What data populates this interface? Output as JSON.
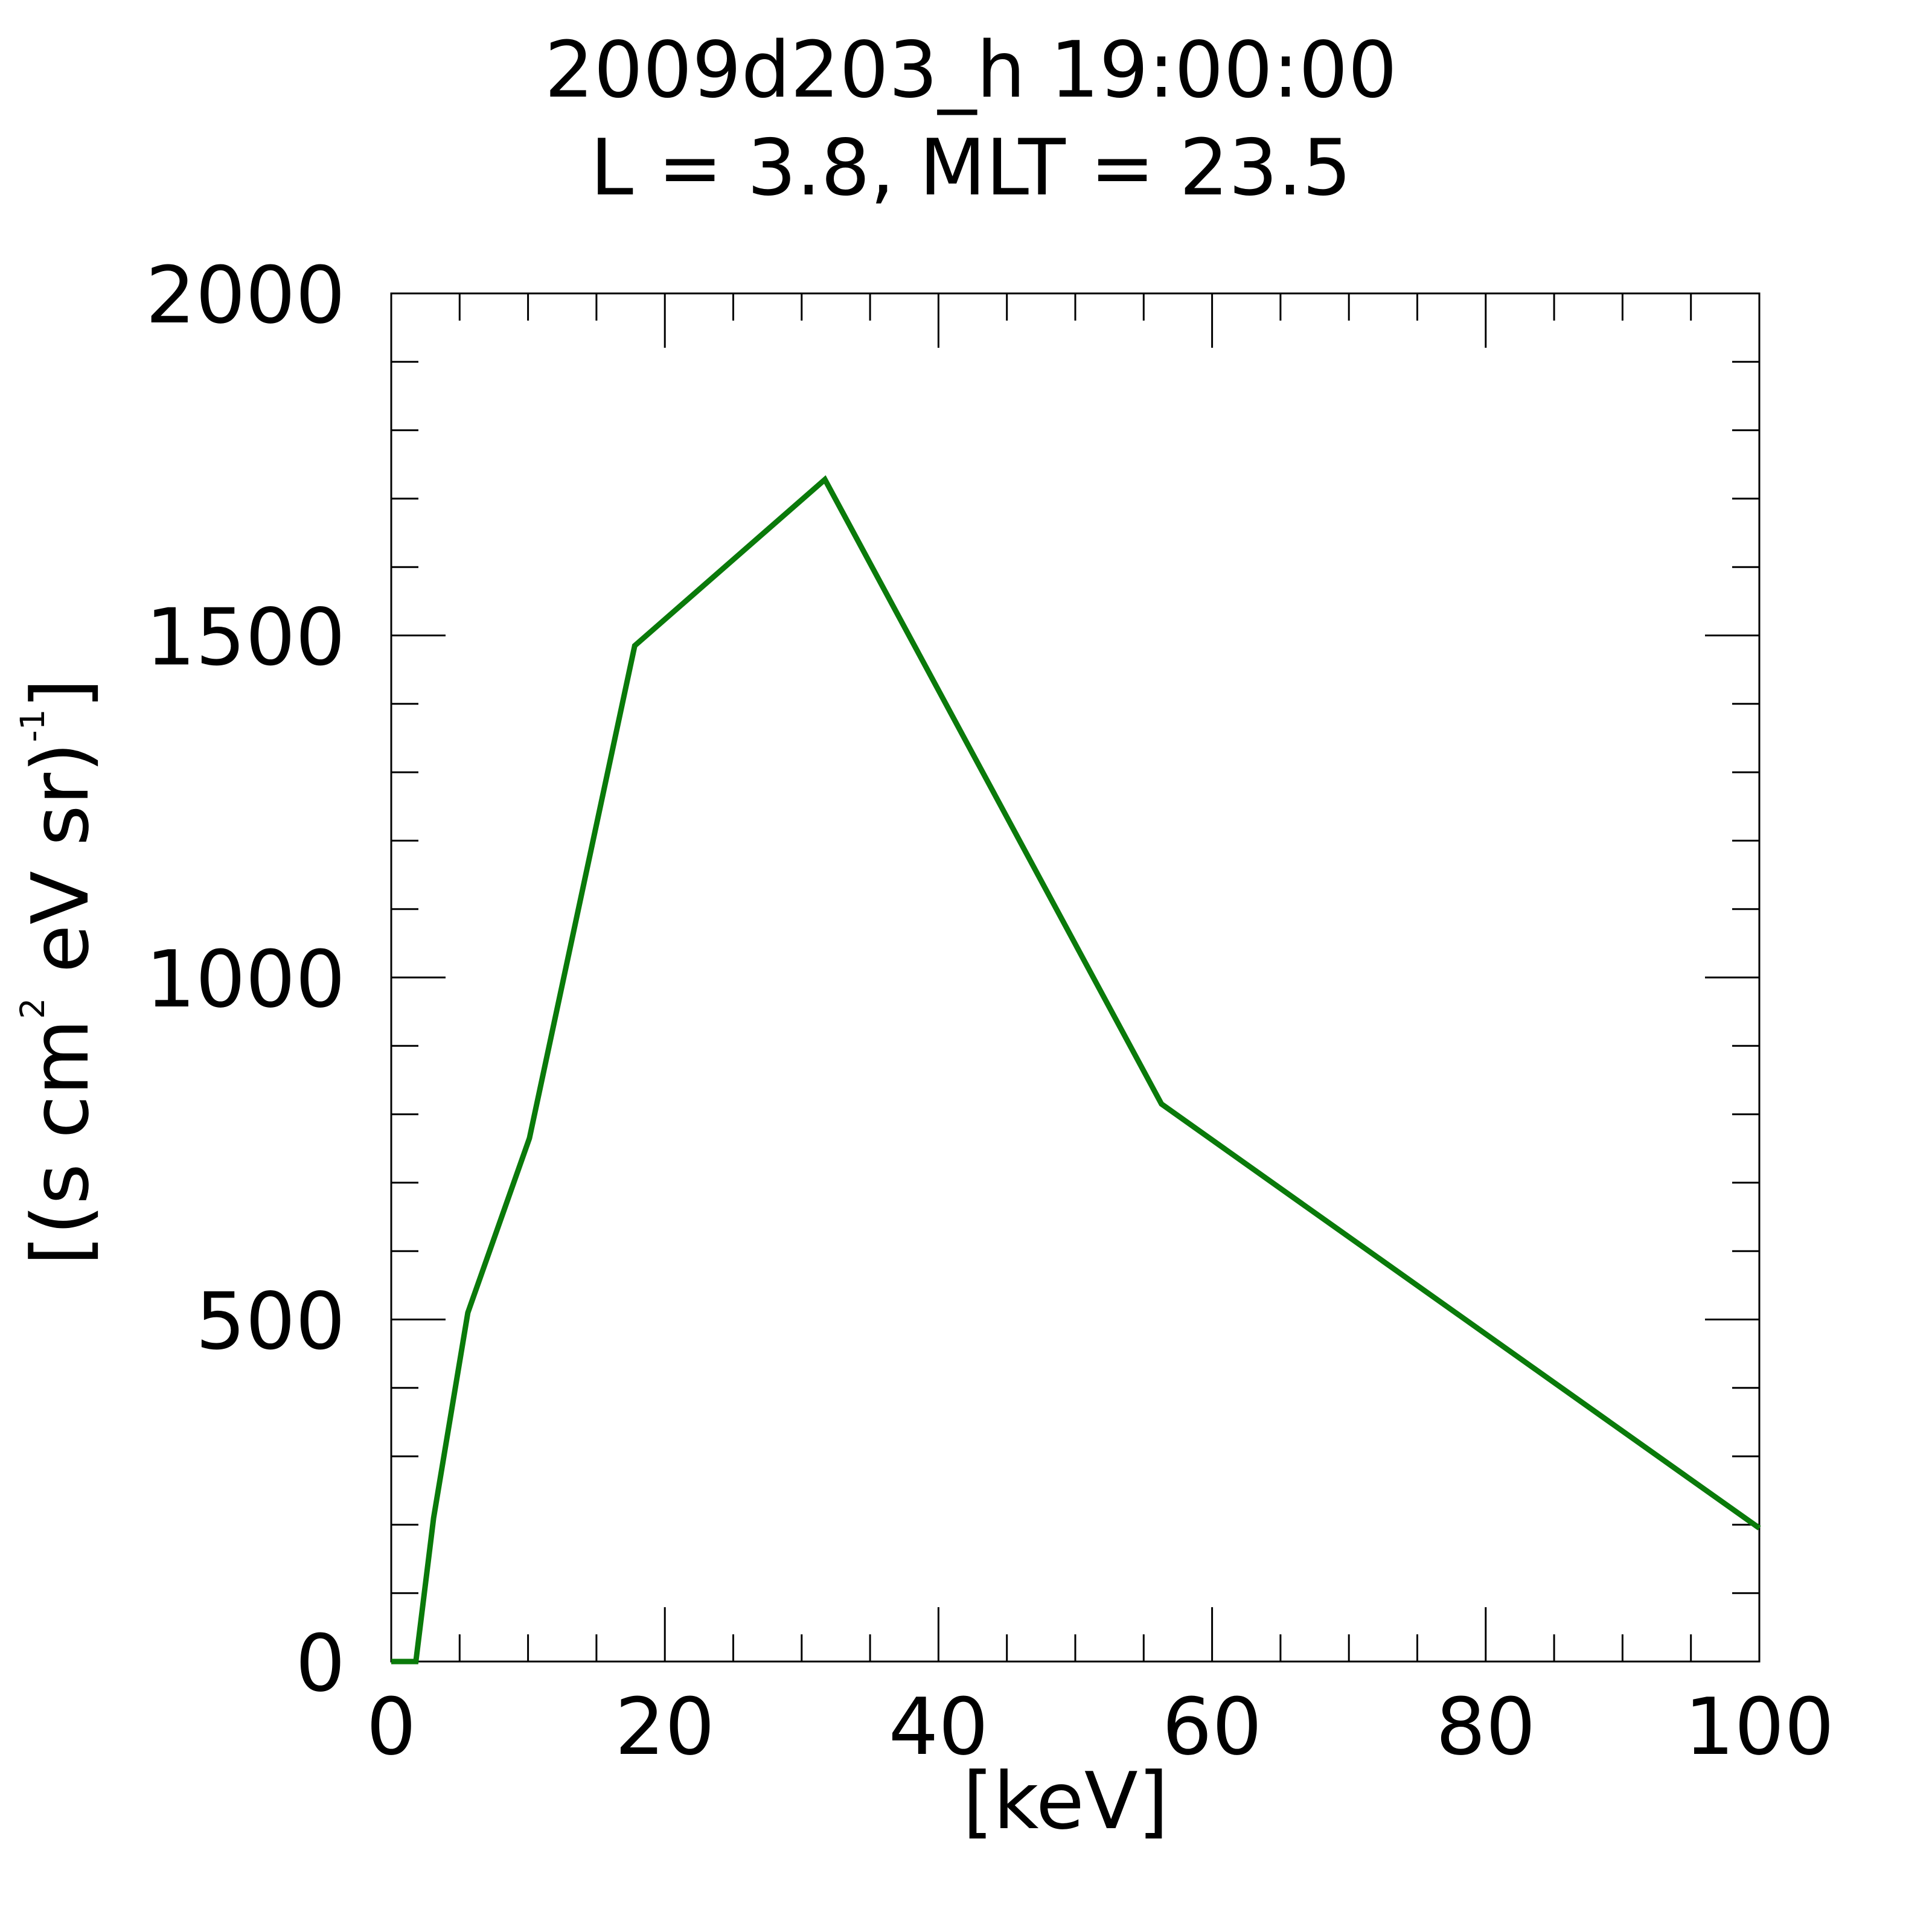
{
  "chart_data": {
    "type": "line",
    "title": "2009d203_h  19:00:00",
    "subtitle": "L = 3.8, MLT = 23.5",
    "xlabel": "[keV]",
    "ylabel": {
      "part1": "[(s cm",
      "sup1": "2",
      "part2": " eV sr)",
      "sup2": "-1",
      "part3": "]"
    },
    "xlim": [
      0,
      100
    ],
    "ylim": [
      0,
      2000
    ],
    "x_ticks": [
      0,
      20,
      40,
      60,
      80,
      100
    ],
    "y_ticks": [
      0,
      500,
      1000,
      1500,
      2000
    ],
    "x_minor_step": 5,
    "y_minor_step": 100,
    "grid": false,
    "series": [
      {
        "color": "#0a7a0a",
        "x": [
          0,
          1.8,
          3.1,
          5.6,
          10.1,
          17.8,
          31.7,
          56.3,
          100
        ],
        "y": [
          0,
          0,
          210,
          510,
          765,
          1485,
          1728,
          815,
          195
        ]
      }
    ]
  }
}
